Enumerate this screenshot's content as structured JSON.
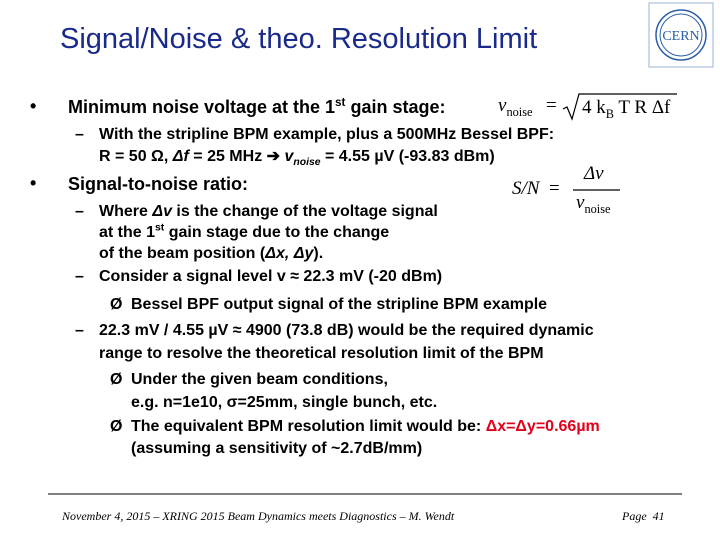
{
  "header": {
    "title": "Signal/Noise & theo. Resolution Limit",
    "logo": "CERN"
  },
  "body": {
    "lines": [
      {
        "marker": "•",
        "parts": [
          "Minimum noise voltage at the 1",
          "st",
          " gain stage:"
        ]
      },
      {
        "marker": "–",
        "parts": [
          "With the stripline BPM example, plus a 500MHz Bessel BPF:"
        ]
      },
      {
        "parts": [
          "R = 50 Ω, ",
          "Δf",
          " = 25 MHz ",
          "➔",
          " ",
          "v",
          "noise",
          " = 4.55 µV (-93.83 dBm)"
        ]
      },
      {
        "marker": "•",
        "parts": [
          "Signal-to-noise ratio:"
        ]
      },
      {
        "marker": "–",
        "parts": [
          "Where ",
          "Δv",
          " is the change of the voltage signal"
        ]
      },
      {
        "parts": [
          "at the 1",
          "st",
          " gain stage due to the change"
        ]
      },
      {
        "parts": [
          "of the beam position (",
          "Δx, Δy",
          ")."
        ]
      },
      {
        "marker": "–",
        "parts": [
          "Consider a signal level v ≈ 22.3 mV (-20 dBm)"
        ]
      },
      {
        "marker": "Ø",
        "parts": [
          "Bessel BPF output signal of the stripline BPM example"
        ]
      },
      {
        "marker": "–",
        "parts": [
          "22.3 mV / 4.55 µV ≈ 4900 (73.8 dB) would be the required dynamic"
        ]
      },
      {
        "parts": [
          "range to resolve the theoretical resolution limit of the BPM"
        ]
      },
      {
        "marker": "Ø",
        "parts": [
          "Under the given beam conditions,"
        ]
      },
      {
        "parts": [
          "e.g. n=1e10, σ=25mm, single bunch, etc."
        ]
      },
      {
        "marker": "Ø",
        "parts": [
          "The equivalent BPM resolution limit would be: ",
          "Δx=Δy=0.66µm"
        ]
      },
      {
        "parts": [
          "(assuming a sensitivity of ~2.7dB/mm)"
        ]
      }
    ]
  },
  "formulas": {
    "noise": {
      "lhs": "v",
      "lhs_sub": "noise",
      "eq": "=",
      "rhs": "4 k",
      "rhs_sub": "B",
      "rhs_rest": " T R Δf"
    },
    "snr": {
      "lhs": "S/N",
      "eq": "=",
      "num": "Δv",
      "den": "v",
      "den_sub": "noise"
    }
  },
  "footer": {
    "text": "November 4, 2015 – XRING 2015 Beam Dynamics meets Diagnostics – M. Wendt",
    "page": "Page  41"
  }
}
